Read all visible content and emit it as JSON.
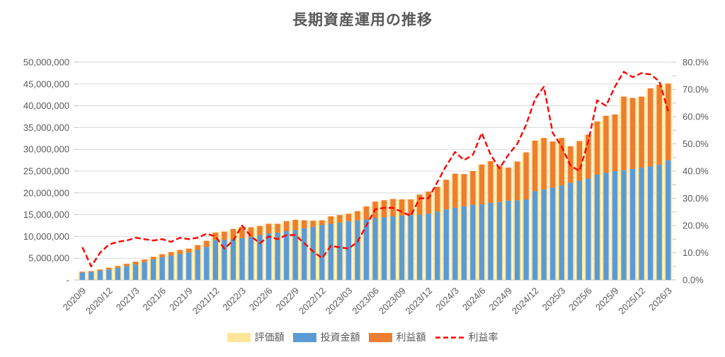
{
  "title": "長期資産運用の推移",
  "colors": {
    "valuation": "#FFE599",
    "investment": "#5B9BD5",
    "profit": "#ED7D31",
    "rate_line": "#FF0000",
    "gridline": "#D9D9D9",
    "axis_text": "#595959",
    "tick": "#BFBFBF"
  },
  "chart_data": {
    "type": "bar",
    "subtype": "combo-stacked-bars-with-line",
    "title": "長期資産運用の推移",
    "grid": "horizontal",
    "legend_position": "bottom",
    "months": [
      "2020/9",
      "2020/10",
      "2020/11",
      "2020/12",
      "2021/1",
      "2021/2",
      "2021/3",
      "2021/4",
      "2021/5",
      "2021/6",
      "2021/7",
      "2021/8",
      "2021/9",
      "2021/10",
      "2021/11",
      "2021/12",
      "2022/1",
      "2022/2",
      "2022/3",
      "2022/4",
      "2022/5",
      "2022/6",
      "2022/7",
      "2022/8",
      "2022/9",
      "2022/10",
      "2022/11",
      "2022/12",
      "2023/1",
      "2023/2",
      "2023/3",
      "2023/4",
      "2023/5",
      "2023/6",
      "2023/7",
      "2023/8",
      "2023/9",
      "2023/10",
      "2023/11",
      "2023/12",
      "2024/1",
      "2024/2",
      "2024/3",
      "2024/4",
      "2024/5",
      "2024/6",
      "2024/7",
      "2024/8",
      "2024/9",
      "2024/10",
      "2024/11",
      "2024/12",
      "2025/1",
      "2025/2",
      "2025/3",
      "2025/4",
      "2025/5",
      "2025/6",
      "2025/7",
      "2025/8",
      "2025/9",
      "2025/10",
      "2025/11",
      "2025/12",
      "2026/1",
      "2026/2",
      "2026/3"
    ],
    "x_tick_labels": [
      "2020/9",
      "2020/12",
      "2021/3",
      "2021/6",
      "2021/9",
      "2021/12",
      "2022/3",
      "2022/6",
      "2022/9",
      "2022/12",
      "2023/03",
      "2023/06",
      "2023/09",
      "2023/12",
      "2024/3",
      "2024/6",
      "2024/9",
      "2024/12",
      "2025/3",
      "2025/6",
      "2025/9",
      "2025/12",
      "2026/3"
    ],
    "x_tick_every": 3,
    "series": [
      {
        "name": "評価額",
        "type": "bar",
        "style": "wide-background",
        "color": "#FFE599",
        "values": [
          1900000,
          2050000,
          2400000,
          2800000,
          3200000,
          3700000,
          4200000,
          4700000,
          5300000,
          5900000,
          6400000,
          6900000,
          7200000,
          8000000,
          9000000,
          10900000,
          11100000,
          11700000,
          12200000,
          12100000,
          12400000,
          12900000,
          12900000,
          13500000,
          13800000,
          13700000,
          13600000,
          13700000,
          14600000,
          14900000,
          15200000,
          15800000,
          16900000,
          18000000,
          18300000,
          18600000,
          18500000,
          18500000,
          19600000,
          20300000,
          21400000,
          23000000,
          24400000,
          24300000,
          25000000,
          26500000,
          27300000,
          26200000,
          25800000,
          27200000,
          29300000,
          32000000,
          32600000,
          31800000,
          32600000,
          30700000,
          31900000,
          33400000,
          36400000,
          37700000,
          38000000,
          42100000,
          41800000,
          42100000,
          44000000,
          44800000,
          45100000
        ]
      },
      {
        "name": "投資金額",
        "type": "bar",
        "style": "stacked-base",
        "color": "#5B9BD5",
        "values": [
          1700000,
          1900000,
          2150000,
          2400000,
          2800000,
          3200000,
          3600000,
          4100000,
          4700000,
          5200000,
          5600000,
          6000000,
          6300000,
          6900000,
          7600000,
          9200000,
          9200000,
          9400000,
          9600000,
          9900000,
          10300000,
          10700000,
          10900000,
          11200000,
          11500000,
          11900000,
          12200000,
          12600000,
          12900000,
          13200000,
          13500000,
          13700000,
          13900000,
          14200000,
          14400000,
          14600000,
          14800000,
          14900000,
          15000000,
          15200000,
          15700000,
          16200000,
          16600000,
          16900000,
          17200000,
          17400000,
          17700000,
          17900000,
          18200000,
          18300000,
          18500000,
          20400000,
          20800000,
          21200000,
          21700000,
          22300000,
          22800000,
          23300000,
          24200000,
          24600000,
          25000000,
          25200000,
          25500000,
          25800000,
          26100000,
          26500000,
          27500000
        ]
      },
      {
        "name": "利益額",
        "type": "bar",
        "style": "stacked-top",
        "color": "#ED7D31",
        "values": [
          200000,
          150000,
          250000,
          400000,
          400000,
          500000,
          600000,
          600000,
          600000,
          700000,
          800000,
          900000,
          900000,
          1100000,
          1400000,
          1700000,
          1900000,
          2300000,
          2600000,
          2200000,
          2100000,
          2200000,
          2000000,
          2300000,
          2300000,
          1800000,
          1400000,
          1100000,
          1700000,
          1700000,
          1700000,
          2100000,
          3000000,
          3800000,
          3900000,
          4000000,
          3700000,
          3600000,
          4600000,
          5100000,
          5700000,
          6800000,
          7800000,
          7400000,
          7800000,
          9100000,
          9600000,
          8300000,
          7600000,
          8900000,
          10800000,
          11600000,
          11800000,
          10600000,
          10900000,
          8400000,
          9100000,
          10100000,
          12200000,
          13100000,
          13000000,
          16900000,
          16300000,
          16300000,
          17900000,
          18300000,
          17600000
        ]
      },
      {
        "name": "利益率",
        "type": "line",
        "dashed": true,
        "color": "#FF0000",
        "axis": "right",
        "values_percent": [
          12,
          5,
          10,
          13,
          14,
          14.5,
          15.5,
          15,
          14.5,
          15,
          14,
          15.5,
          15,
          15.5,
          17,
          16,
          11.5,
          14.5,
          20,
          16,
          13.5,
          16,
          15,
          16.5,
          16.5,
          13.5,
          10.5,
          8,
          12.5,
          12,
          11.5,
          14,
          20,
          26,
          26.5,
          26.5,
          25,
          23.5,
          30,
          30,
          36,
          42,
          47,
          44,
          46,
          54,
          46,
          41,
          46,
          50,
          57,
          66.5,
          71,
          54,
          49,
          42,
          40,
          51,
          66,
          64,
          71,
          76.5,
          74.5,
          76,
          75.5,
          73,
          62
        ]
      }
    ],
    "left_axis": {
      "min": 0,
      "max": 50000000,
      "step": 5000000,
      "labels_top_to_bottom": [
        "50,000,000",
        "45,000,000",
        "40,000,000",
        "35,000,000",
        "30,000,000",
        "25,000,000",
        "20,000,000",
        "15,000,000",
        "10,000,000",
        "5,000,000",
        "-"
      ]
    },
    "right_axis": {
      "min": 0,
      "max": 80,
      "step": 10,
      "minor_tick_step": 5,
      "labels_top_to_bottom": [
        "80.0%",
        "70.0%",
        "60.0%",
        "50.0%",
        "40.0%",
        "30.0%",
        "20.0%",
        "10.0%",
        "0.0%"
      ]
    }
  }
}
